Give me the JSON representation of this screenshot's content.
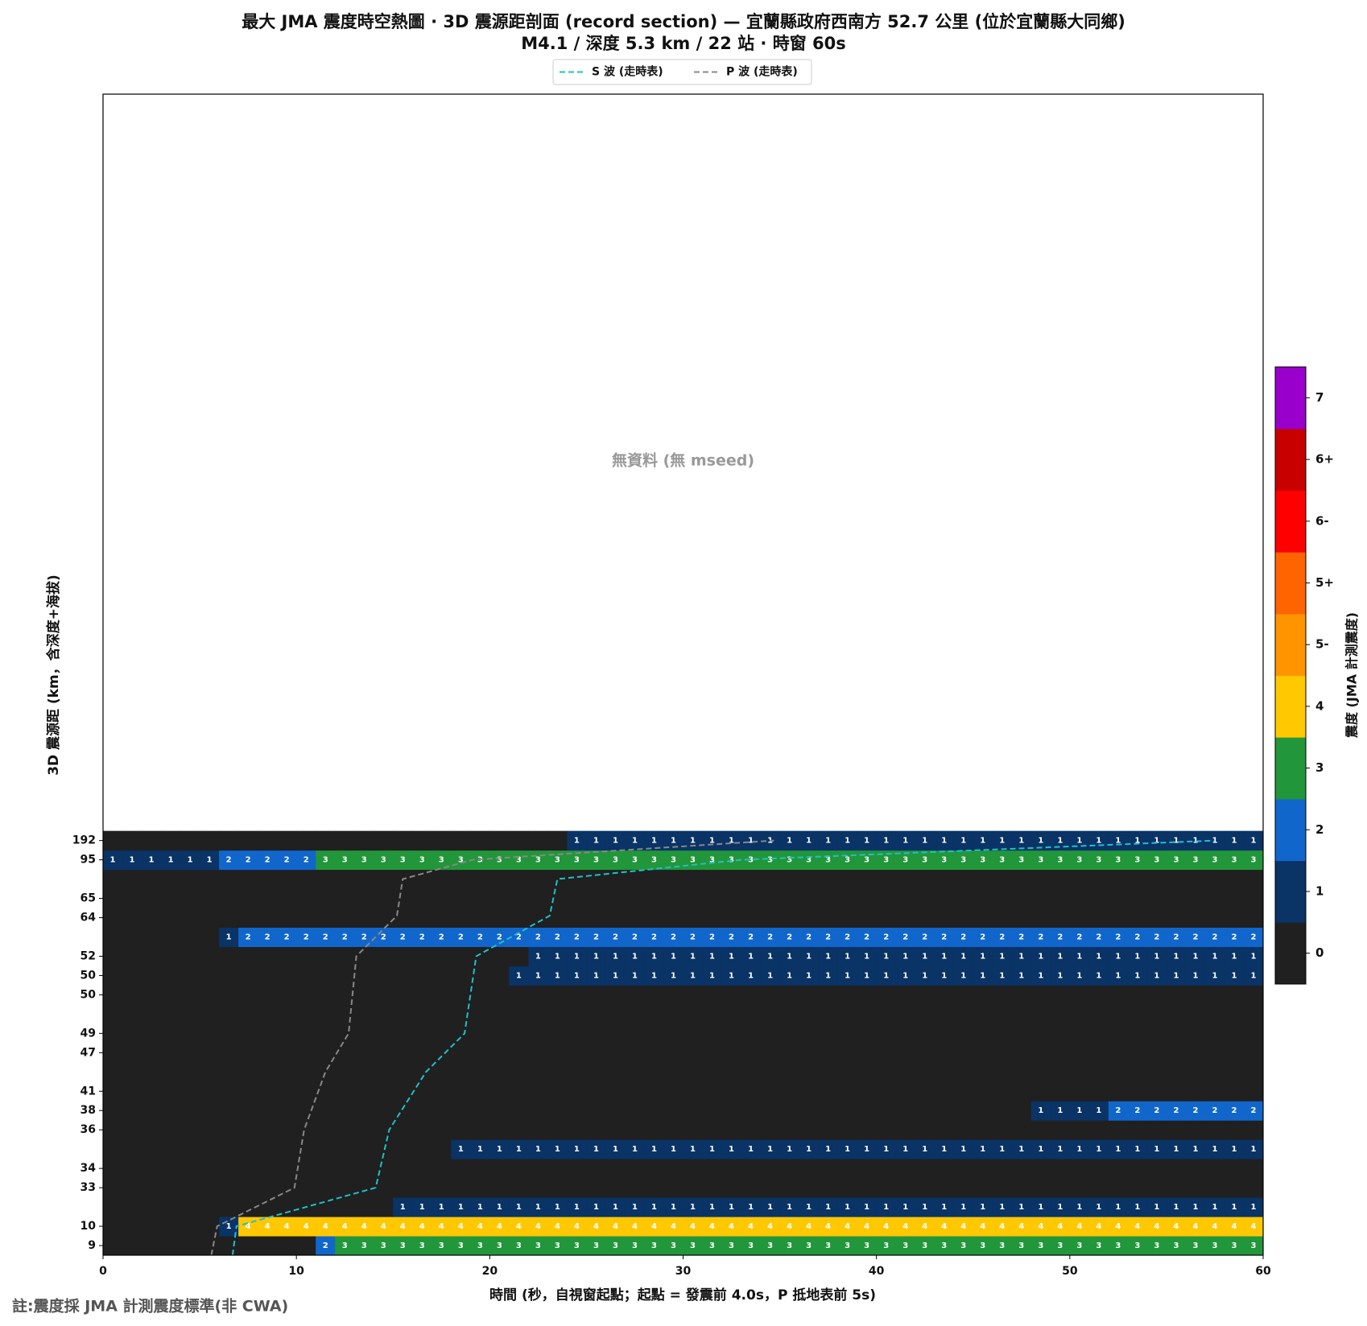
{
  "chart_data": {
    "type": "heatmap",
    "title": "最大 JMA 震度時空熱圖 · 3D 震源距剖面 (record section) — 宜蘭縣政府西南方  52.7  公里 (位於宜蘭縣大同鄉)",
    "subtitle": "M4.1 / 深度 5.3 km / 22 站 · 時窗 60s",
    "xlabel": "時間 (秒，自視窗起點；起點 = 發震前 4.0s，P 抵地表前 5s)",
    "ylabel": "3D 震源距 (km，含深度+海拔)",
    "annotation": "無資料 (無 mseed)",
    "xlim": [
      0,
      60
    ],
    "xticks": [
      0,
      10,
      20,
      30,
      40,
      50,
      60
    ],
    "ylim": [
      -0.5,
      59.7
    ],
    "rows": [
      "9",
      "10",
      null,
      "33",
      "34",
      null,
      "36",
      "38",
      "41",
      null,
      "47",
      "49",
      null,
      "50",
      "50",
      "52",
      null,
      "64",
      "65",
      null,
      "95",
      "192"
    ],
    "cells": [
      [
        0,
        0,
        0,
        0,
        0,
        0,
        0,
        0,
        0,
        0,
        0,
        2,
        3,
        3,
        3,
        3,
        3,
        3,
        3,
        3,
        3,
        3,
        3,
        3,
        3,
        3,
        3,
        3,
        3,
        3,
        3,
        3,
        3,
        3,
        3,
        3,
        3,
        3,
        3,
        3,
        3,
        3,
        3,
        3,
        3,
        3,
        3,
        3,
        3,
        3,
        3,
        3,
        3,
        3,
        3,
        3,
        3,
        3,
        3,
        3
      ],
      [
        0,
        0,
        0,
        0,
        0,
        0,
        1,
        4,
        4,
        4,
        4,
        4,
        4,
        4,
        4,
        4,
        4,
        4,
        4,
        4,
        4,
        4,
        4,
        4,
        4,
        4,
        4,
        4,
        4,
        4,
        4,
        4,
        4,
        4,
        4,
        4,
        4,
        4,
        4,
        4,
        4,
        4,
        4,
        4,
        4,
        4,
        4,
        4,
        4,
        4,
        4,
        4,
        4,
        4,
        4,
        4,
        4,
        4,
        4,
        4
      ],
      [
        0,
        0,
        0,
        0,
        0,
        0,
        0,
        0,
        0,
        0,
        0,
        0,
        0,
        0,
        0,
        1,
        1,
        1,
        1,
        1,
        1,
        1,
        1,
        1,
        1,
        1,
        1,
        1,
        1,
        1,
        1,
        1,
        1,
        1,
        1,
        1,
        1,
        1,
        1,
        1,
        1,
        1,
        1,
        1,
        1,
        1,
        1,
        1,
        1,
        1,
        1,
        1,
        1,
        1,
        1,
        1,
        1,
        1,
        1,
        1
      ],
      [
        0,
        0,
        0,
        0,
        0,
        0,
        0,
        0,
        0,
        0,
        0,
        0,
        0,
        0,
        0,
        0,
        0,
        0,
        0,
        0,
        0,
        0,
        0,
        0,
        0,
        0,
        0,
        0,
        0,
        0,
        0,
        0,
        0,
        0,
        0,
        0,
        0,
        0,
        0,
        0,
        0,
        0,
        0,
        0,
        0,
        0,
        0,
        0,
        0,
        0,
        0,
        0,
        0,
        0,
        0,
        0,
        0,
        0,
        0,
        0
      ],
      [
        0,
        0,
        0,
        0,
        0,
        0,
        0,
        0,
        0,
        0,
        0,
        0,
        0,
        0,
        0,
        0,
        0,
        0,
        0,
        0,
        0,
        0,
        0,
        0,
        0,
        0,
        0,
        0,
        0,
        0,
        0,
        0,
        0,
        0,
        0,
        0,
        0,
        0,
        0,
        0,
        0,
        0,
        0,
        0,
        0,
        0,
        0,
        0,
        0,
        0,
        0,
        0,
        0,
        0,
        0,
        0,
        0,
        0,
        0,
        0
      ],
      [
        0,
        0,
        0,
        0,
        0,
        0,
        0,
        0,
        0,
        0,
        0,
        0,
        0,
        0,
        0,
        0,
        0,
        0,
        1,
        1,
        1,
        1,
        1,
        1,
        1,
        1,
        1,
        1,
        1,
        1,
        1,
        1,
        1,
        1,
        1,
        1,
        1,
        1,
        1,
        1,
        1,
        1,
        1,
        1,
        1,
        1,
        1,
        1,
        1,
        1,
        1,
        1,
        1,
        1,
        1,
        1,
        1,
        1,
        1,
        1
      ],
      [
        0,
        0,
        0,
        0,
        0,
        0,
        0,
        0,
        0,
        0,
        0,
        0,
        0,
        0,
        0,
        0,
        0,
        0,
        0,
        0,
        0,
        0,
        0,
        0,
        0,
        0,
        0,
        0,
        0,
        0,
        0,
        0,
        0,
        0,
        0,
        0,
        0,
        0,
        0,
        0,
        0,
        0,
        0,
        0,
        0,
        0,
        0,
        0,
        0,
        0,
        0,
        0,
        0,
        0,
        0,
        0,
        0,
        0,
        0,
        0
      ],
      [
        0,
        0,
        0,
        0,
        0,
        0,
        0,
        0,
        0,
        0,
        0,
        0,
        0,
        0,
        0,
        0,
        0,
        0,
        0,
        0,
        0,
        0,
        0,
        0,
        0,
        0,
        0,
        0,
        0,
        0,
        0,
        0,
        0,
        0,
        0,
        0,
        0,
        0,
        0,
        0,
        0,
        0,
        0,
        0,
        0,
        0,
        0,
        0,
        1,
        1,
        1,
        1,
        2,
        2,
        2,
        2,
        2,
        2,
        2,
        2
      ],
      [
        0,
        0,
        0,
        0,
        0,
        0,
        0,
        0,
        0,
        0,
        0,
        0,
        0,
        0,
        0,
        0,
        0,
        0,
        0,
        0,
        0,
        0,
        0,
        0,
        0,
        0,
        0,
        0,
        0,
        0,
        0,
        0,
        0,
        0,
        0,
        0,
        0,
        0,
        0,
        0,
        0,
        0,
        0,
        0,
        0,
        0,
        0,
        0,
        0,
        0,
        0,
        0,
        0,
        0,
        0,
        0,
        0,
        0,
        0,
        0
      ],
      [
        0,
        0,
        0,
        0,
        0,
        0,
        0,
        0,
        0,
        0,
        0,
        0,
        0,
        0,
        0,
        0,
        0,
        0,
        0,
        0,
        0,
        0,
        0,
        0,
        0,
        0,
        0,
        0,
        0,
        0,
        0,
        0,
        0,
        0,
        0,
        0,
        0,
        0,
        0,
        0,
        0,
        0,
        0,
        0,
        0,
        0,
        0,
        0,
        0,
        0,
        0,
        0,
        0,
        0,
        0,
        0,
        0,
        0,
        0,
        0
      ],
      [
        0,
        0,
        0,
        0,
        0,
        0,
        0,
        0,
        0,
        0,
        0,
        0,
        0,
        0,
        0,
        0,
        0,
        0,
        0,
        0,
        0,
        0,
        0,
        0,
        0,
        0,
        0,
        0,
        0,
        0,
        0,
        0,
        0,
        0,
        0,
        0,
        0,
        0,
        0,
        0,
        0,
        0,
        0,
        0,
        0,
        0,
        0,
        0,
        0,
        0,
        0,
        0,
        0,
        0,
        0,
        0,
        0,
        0,
        0,
        0
      ],
      [
        0,
        0,
        0,
        0,
        0,
        0,
        0,
        0,
        0,
        0,
        0,
        0,
        0,
        0,
        0,
        0,
        0,
        0,
        0,
        0,
        0,
        0,
        0,
        0,
        0,
        0,
        0,
        0,
        0,
        0,
        0,
        0,
        0,
        0,
        0,
        0,
        0,
        0,
        0,
        0,
        0,
        0,
        0,
        0,
        0,
        0,
        0,
        0,
        0,
        0,
        0,
        0,
        0,
        0,
        0,
        0,
        0,
        0,
        0,
        0
      ],
      [
        0,
        0,
        0,
        0,
        0,
        0,
        0,
        0,
        0,
        0,
        0,
        0,
        0,
        0,
        0,
        0,
        0,
        0,
        0,
        0,
        0,
        0,
        0,
        0,
        0,
        0,
        0,
        0,
        0,
        0,
        0,
        0,
        0,
        0,
        0,
        0,
        0,
        0,
        0,
        0,
        0,
        0,
        0,
        0,
        0,
        0,
        0,
        0,
        0,
        0,
        0,
        0,
        0,
        0,
        0,
        0,
        0,
        0,
        0,
        0
      ],
      [
        0,
        0,
        0,
        0,
        0,
        0,
        0,
        0,
        0,
        0,
        0,
        0,
        0,
        0,
        0,
        0,
        0,
        0,
        0,
        0,
        0,
        0,
        0,
        0,
        0,
        0,
        0,
        0,
        0,
        0,
        0,
        0,
        0,
        0,
        0,
        0,
        0,
        0,
        0,
        0,
        0,
        0,
        0,
        0,
        0,
        0,
        0,
        0,
        0,
        0,
        0,
        0,
        0,
        0,
        0,
        0,
        0,
        0,
        0,
        0
      ],
      [
        0,
        0,
        0,
        0,
        0,
        0,
        0,
        0,
        0,
        0,
        0,
        0,
        0,
        0,
        0,
        0,
        0,
        0,
        0,
        0,
        0,
        1,
        1,
        1,
        1,
        1,
        1,
        1,
        1,
        1,
        1,
        1,
        1,
        1,
        1,
        1,
        1,
        1,
        1,
        1,
        1,
        1,
        1,
        1,
        1,
        1,
        1,
        1,
        1,
        1,
        1,
        1,
        1,
        1,
        1,
        1,
        1,
        1,
        1,
        1
      ],
      [
        0,
        0,
        0,
        0,
        0,
        0,
        0,
        0,
        0,
        0,
        0,
        0,
        0,
        0,
        0,
        0,
        0,
        0,
        0,
        0,
        0,
        0,
        1,
        1,
        1,
        1,
        1,
        1,
        1,
        1,
        1,
        1,
        1,
        1,
        1,
        1,
        1,
        1,
        1,
        1,
        1,
        1,
        1,
        1,
        1,
        1,
        1,
        1,
        1,
        1,
        1,
        1,
        1,
        1,
        1,
        1,
        1,
        1,
        1,
        1
      ],
      [
        0,
        0,
        0,
        0,
        0,
        0,
        1,
        2,
        2,
        2,
        2,
        2,
        2,
        2,
        2,
        2,
        2,
        2,
        2,
        2,
        2,
        2,
        2,
        2,
        2,
        2,
        2,
        2,
        2,
        2,
        2,
        2,
        2,
        2,
        2,
        2,
        2,
        2,
        2,
        2,
        2,
        2,
        2,
        2,
        2,
        2,
        2,
        2,
        2,
        2,
        2,
        2,
        2,
        2,
        2,
        2,
        2,
        2,
        2,
        2
      ],
      [
        0,
        0,
        0,
        0,
        0,
        0,
        0,
        0,
        0,
        0,
        0,
        0,
        0,
        0,
        0,
        0,
        0,
        0,
        0,
        0,
        0,
        0,
        0,
        0,
        0,
        0,
        0,
        0,
        0,
        0,
        0,
        0,
        0,
        0,
        0,
        0,
        0,
        0,
        0,
        0,
        0,
        0,
        0,
        0,
        0,
        0,
        0,
        0,
        0,
        0,
        0,
        0,
        0,
        0,
        0,
        0,
        0,
        0,
        0,
        0
      ],
      [
        0,
        0,
        0,
        0,
        0,
        0,
        0,
        0,
        0,
        0,
        0,
        0,
        0,
        0,
        0,
        0,
        0,
        0,
        0,
        0,
        0,
        0,
        0,
        0,
        0,
        0,
        0,
        0,
        0,
        0,
        0,
        0,
        0,
        0,
        0,
        0,
        0,
        0,
        0,
        0,
        0,
        0,
        0,
        0,
        0,
        0,
        0,
        0,
        0,
        0,
        0,
        0,
        0,
        0,
        0,
        0,
        0,
        0,
        0,
        0
      ],
      [
        0,
        0,
        0,
        0,
        0,
        0,
        0,
        0,
        0,
        0,
        0,
        0,
        0,
        0,
        0,
        0,
        0,
        0,
        0,
        0,
        0,
        0,
        0,
        0,
        0,
        0,
        0,
        0,
        0,
        0,
        0,
        0,
        0,
        0,
        0,
        0,
        0,
        0,
        0,
        0,
        0,
        0,
        0,
        0,
        0,
        0,
        0,
        0,
        0,
        0,
        0,
        0,
        0,
        0,
        0,
        0,
        0,
        0,
        0,
        0
      ],
      [
        1,
        1,
        1,
        1,
        1,
        1,
        2,
        2,
        2,
        2,
        2,
        3,
        3,
        3,
        3,
        3,
        3,
        3,
        3,
        3,
        3,
        3,
        3,
        3,
        3,
        3,
        3,
        3,
        3,
        3,
        3,
        3,
        3,
        3,
        3,
        3,
        3,
        3,
        3,
        3,
        3,
        3,
        3,
        3,
        3,
        3,
        3,
        3,
        3,
        3,
        3,
        3,
        3,
        3,
        3,
        3,
        3,
        3,
        3,
        3
      ],
      [
        0,
        0,
        0,
        0,
        0,
        0,
        0,
        0,
        0,
        0,
        0,
        0,
        0,
        0,
        0,
        0,
        0,
        0,
        0,
        0,
        0,
        0,
        0,
        0,
        1,
        1,
        1,
        1,
        1,
        1,
        1,
        1,
        1,
        1,
        1,
        1,
        1,
        1,
        1,
        1,
        1,
        1,
        1,
        1,
        1,
        1,
        1,
        1,
        1,
        1,
        1,
        1,
        1,
        1,
        1,
        1,
        1,
        1,
        1,
        1
      ]
    ],
    "colorbar": {
      "label": "震度 (JMA 計測震度)",
      "classes": [
        "0",
        "1",
        "2",
        "3",
        "4",
        "5-",
        "5+",
        "6-",
        "6+",
        "7"
      ],
      "colors": [
        "#202020",
        "#0a3366",
        "#1166cc",
        "#22963a",
        "#ffc800",
        "#ff9400",
        "#ff6400",
        "#ff0000",
        "#c80000",
        "#9900cc"
      ]
    },
    "series": [
      {
        "name": "S 波 (走時表)",
        "color": "#20c0c8",
        "x": [
          6.7,
          6.9,
          14.1,
          14.8,
          16.7,
          18.7,
          19.3,
          23.1,
          23.5,
          33.0,
          57.5
        ],
        "y": [
          -0.5,
          1.0,
          3.0,
          6.0,
          9.0,
          11.0,
          15.0,
          17.1,
          19.0,
          20.0,
          21.0
        ]
      },
      {
        "name": "P 波 (走時表)",
        "color": "#888888",
        "x": [
          5.6,
          5.9,
          9.9,
          10.4,
          11.5,
          12.7,
          13.1,
          15.2,
          15.5,
          19.1,
          34.7
        ],
        "y": [
          -0.5,
          1.0,
          3.0,
          6.0,
          9.0,
          11.0,
          15.0,
          17.1,
          19.0,
          20.0,
          21.0
        ]
      }
    ],
    "legend": "upper center"
  },
  "footnote": "註:震度採 JMA 計測震度標準(非 CWA)"
}
